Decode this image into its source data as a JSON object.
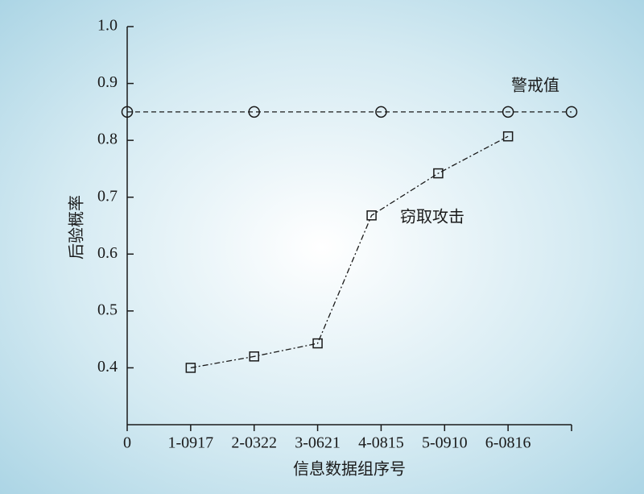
{
  "chart_data": {
    "type": "line",
    "xlabel": "信息数据组序号",
    "ylabel": "后验概率",
    "xlim": [
      0,
      7
    ],
    "ylim": [
      0.3,
      1.0
    ],
    "xticks": [
      0,
      {
        "value": 1,
        "label": "1-0917"
      },
      {
        "value": 2,
        "label": "2-0322"
      },
      {
        "value": 3,
        "label": "3-0621"
      },
      {
        "value": 4,
        "label": "4-0815"
      },
      {
        "value": 5,
        "label": "5-0910"
      },
      {
        "value": 6,
        "label": "6-0816"
      }
    ],
    "yticks": [
      0.4,
      0.5,
      0.6,
      0.7,
      0.8,
      0.9,
      {
        "value": 1,
        "label": "1.0"
      }
    ],
    "series": [
      {
        "name": "警戒值",
        "color": "#1a1a1a",
        "linestyle": "dashed",
        "marker": "circle",
        "x": [
          0,
          2,
          4,
          6,
          7
        ],
        "values": [
          0.85,
          0.85,
          0.85,
          0.85,
          0.85
        ]
      },
      {
        "name": "窃取攻击",
        "color": "#1a1a1a",
        "linestyle": "dashdot",
        "marker": "square",
        "x": [
          1,
          2,
          3,
          3.85,
          4.9,
          6
        ],
        "values": [
          0.4,
          0.42,
          0.443,
          0.668,
          0.742,
          0.807
        ]
      }
    ]
  }
}
